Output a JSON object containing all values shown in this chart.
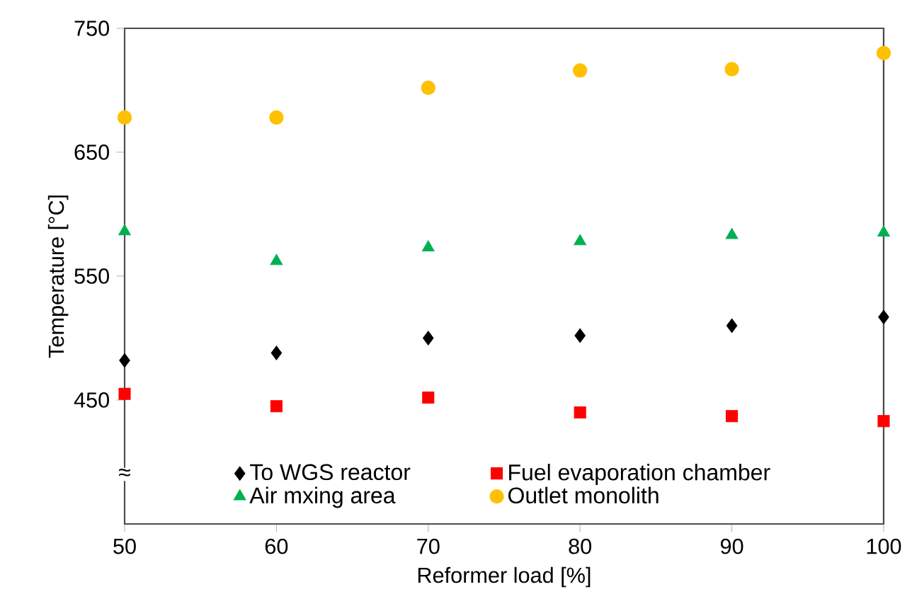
{
  "chart_data": {
    "type": "scatter",
    "xlabel": "Reformer load [%]",
    "ylabel": "Temperature [°C]",
    "x": [
      50,
      60,
      70,
      80,
      90,
      100
    ],
    "series": [
      {
        "name": "To WGS reactor",
        "color": "#000000",
        "marker": "diamond",
        "values": [
          482,
          488,
          500,
          502,
          510,
          517
        ]
      },
      {
        "name": "Fuel evaporation chamber",
        "color": "#ff0000",
        "marker": "square",
        "values": [
          455,
          445,
          452,
          440,
          437,
          433
        ]
      },
      {
        "name": "Air mxing area",
        "color": "#00b050",
        "marker": "triangle",
        "values": [
          586,
          562,
          573,
          578,
          583,
          585
        ]
      },
      {
        "name": "Outlet monolith",
        "color": "#ffc000",
        "marker": "circle",
        "values": [
          678,
          678,
          702,
          716,
          717,
          730
        ]
      }
    ],
    "xlim": [
      50,
      100
    ],
    "xticks": [
      50,
      60,
      70,
      80,
      90,
      100
    ],
    "ylim": [
      350,
      750
    ],
    "yticks": [
      450,
      550,
      650,
      750
    ],
    "legend": "bottom",
    "grid": false,
    "annotations": [
      "≈"
    ]
  }
}
